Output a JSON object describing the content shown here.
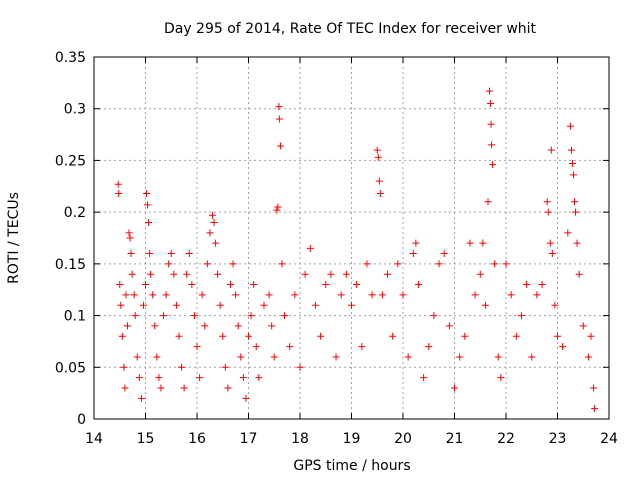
{
  "chart_data": {
    "type": "scatter",
    "title": "Day 295 of 2014, Rate Of TEC Index for receiver whit",
    "xlabel": "GPS time / hours",
    "ylabel": "ROTI / TECUs",
    "xlim": [
      14,
      24
    ],
    "ylim": [
      0,
      0.35
    ],
    "x_ticks": [
      "14",
      "15",
      "16",
      "17",
      "18",
      "19",
      "20",
      "21",
      "22",
      "23",
      "24"
    ],
    "y_ticks": [
      "0",
      "0.05",
      "0.1",
      "0.15",
      "0.2",
      "0.25",
      "0.3",
      "0.35"
    ],
    "grid": true,
    "marker": "+",
    "marker_color": "#ff0000",
    "points": [
      [
        14.47,
        0.227
      ],
      [
        14.48,
        0.218
      ],
      [
        14.5,
        0.13
      ],
      [
        14.52,
        0.11
      ],
      [
        14.55,
        0.08
      ],
      [
        14.58,
        0.05
      ],
      [
        14.6,
        0.03
      ],
      [
        14.62,
        0.12
      ],
      [
        14.65,
        0.09
      ],
      [
        14.68,
        0.18
      ],
      [
        14.7,
        0.175
      ],
      [
        14.72,
        0.16
      ],
      [
        14.74,
        0.14
      ],
      [
        14.78,
        0.12
      ],
      [
        14.8,
        0.1
      ],
      [
        14.84,
        0.06
      ],
      [
        14.88,
        0.04
      ],
      [
        14.92,
        0.02
      ],
      [
        14.96,
        0.11
      ],
      [
        15.0,
        0.13
      ],
      [
        15.02,
        0.218
      ],
      [
        15.04,
        0.207
      ],
      [
        15.06,
        0.19
      ],
      [
        15.08,
        0.16
      ],
      [
        15.1,
        0.14
      ],
      [
        15.14,
        0.12
      ],
      [
        15.18,
        0.09
      ],
      [
        15.22,
        0.06
      ],
      [
        15.26,
        0.04
      ],
      [
        15.3,
        0.03
      ],
      [
        15.35,
        0.1
      ],
      [
        15.4,
        0.12
      ],
      [
        15.45,
        0.15
      ],
      [
        15.5,
        0.16
      ],
      [
        15.55,
        0.14
      ],
      [
        15.6,
        0.11
      ],
      [
        15.65,
        0.08
      ],
      [
        15.7,
        0.05
      ],
      [
        15.75,
        0.03
      ],
      [
        15.8,
        0.14
      ],
      [
        15.85,
        0.16
      ],
      [
        15.9,
        0.13
      ],
      [
        15.95,
        0.1
      ],
      [
        16.0,
        0.07
      ],
      [
        16.05,
        0.04
      ],
      [
        16.1,
        0.12
      ],
      [
        16.15,
        0.09
      ],
      [
        16.2,
        0.15
      ],
      [
        16.25,
        0.18
      ],
      [
        16.3,
        0.197
      ],
      [
        16.33,
        0.19
      ],
      [
        16.36,
        0.17
      ],
      [
        16.4,
        0.14
      ],
      [
        16.45,
        0.11
      ],
      [
        16.5,
        0.08
      ],
      [
        16.55,
        0.05
      ],
      [
        16.6,
        0.03
      ],
      [
        16.65,
        0.13
      ],
      [
        16.7,
        0.15
      ],
      [
        16.75,
        0.12
      ],
      [
        16.8,
        0.09
      ],
      [
        16.85,
        0.06
      ],
      [
        16.9,
        0.04
      ],
      [
        16.95,
        0.02
      ],
      [
        17.0,
        0.08
      ],
      [
        17.05,
        0.1
      ],
      [
        17.1,
        0.13
      ],
      [
        17.15,
        0.07
      ],
      [
        17.2,
        0.04
      ],
      [
        17.3,
        0.11
      ],
      [
        17.4,
        0.12
      ],
      [
        17.45,
        0.09
      ],
      [
        17.5,
        0.06
      ],
      [
        17.55,
        0.202
      ],
      [
        17.57,
        0.205
      ],
      [
        17.59,
        0.302
      ],
      [
        17.6,
        0.29
      ],
      [
        17.62,
        0.264
      ],
      [
        17.65,
        0.15
      ],
      [
        17.7,
        0.1
      ],
      [
        17.8,
        0.07
      ],
      [
        17.9,
        0.12
      ],
      [
        18.0,
        0.05
      ],
      [
        18.1,
        0.14
      ],
      [
        18.2,
        0.165
      ],
      [
        18.3,
        0.11
      ],
      [
        18.4,
        0.08
      ],
      [
        18.5,
        0.13
      ],
      [
        18.6,
        0.14
      ],
      [
        18.7,
        0.06
      ],
      [
        18.8,
        0.12
      ],
      [
        18.9,
        0.14
      ],
      [
        19.0,
        0.11
      ],
      [
        19.1,
        0.13
      ],
      [
        19.2,
        0.07
      ],
      [
        19.3,
        0.15
      ],
      [
        19.4,
        0.12
      ],
      [
        19.5,
        0.26
      ],
      [
        19.52,
        0.253
      ],
      [
        19.54,
        0.23
      ],
      [
        19.56,
        0.218
      ],
      [
        19.6,
        0.12
      ],
      [
        19.7,
        0.14
      ],
      [
        19.8,
        0.08
      ],
      [
        19.9,
        0.15
      ],
      [
        20.0,
        0.12
      ],
      [
        20.1,
        0.06
      ],
      [
        20.2,
        0.16
      ],
      [
        20.25,
        0.17
      ],
      [
        20.3,
        0.13
      ],
      [
        20.4,
        0.04
      ],
      [
        20.5,
        0.07
      ],
      [
        20.6,
        0.1
      ],
      [
        20.7,
        0.15
      ],
      [
        20.8,
        0.16
      ],
      [
        20.9,
        0.09
      ],
      [
        21.0,
        0.03
      ],
      [
        21.1,
        0.06
      ],
      [
        21.2,
        0.08
      ],
      [
        21.3,
        0.17
      ],
      [
        21.4,
        0.12
      ],
      [
        21.5,
        0.14
      ],
      [
        21.55,
        0.17
      ],
      [
        21.6,
        0.11
      ],
      [
        21.65,
        0.21
      ],
      [
        21.68,
        0.317
      ],
      [
        21.7,
        0.305
      ],
      [
        21.71,
        0.285
      ],
      [
        21.72,
        0.265
      ],
      [
        21.74,
        0.246
      ],
      [
        21.78,
        0.15
      ],
      [
        21.85,
        0.06
      ],
      [
        21.9,
        0.04
      ],
      [
        22.0,
        0.15
      ],
      [
        22.1,
        0.12
      ],
      [
        22.2,
        0.08
      ],
      [
        22.3,
        0.1
      ],
      [
        22.4,
        0.13
      ],
      [
        22.5,
        0.06
      ],
      [
        22.6,
        0.12
      ],
      [
        22.7,
        0.13
      ],
      [
        22.8,
        0.21
      ],
      [
        22.82,
        0.2
      ],
      [
        22.86,
        0.17
      ],
      [
        22.88,
        0.26
      ],
      [
        22.9,
        0.16
      ],
      [
        22.95,
        0.11
      ],
      [
        23.0,
        0.08
      ],
      [
        23.1,
        0.07
      ],
      [
        23.2,
        0.18
      ],
      [
        23.25,
        0.283
      ],
      [
        23.27,
        0.26
      ],
      [
        23.29,
        0.247
      ],
      [
        23.31,
        0.236
      ],
      [
        23.33,
        0.21
      ],
      [
        23.35,
        0.2
      ],
      [
        23.38,
        0.17
      ],
      [
        23.42,
        0.14
      ],
      [
        23.5,
        0.09
      ],
      [
        23.6,
        0.06
      ],
      [
        23.65,
        0.08
      ],
      [
        23.7,
        0.03
      ],
      [
        23.72,
        0.01
      ]
    ]
  }
}
